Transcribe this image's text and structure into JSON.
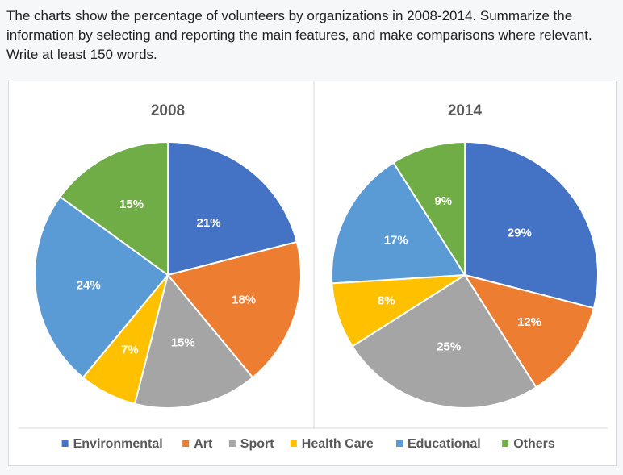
{
  "prompt": {
    "text": "The charts show the percentage of volunteers by organizations in 2008-2014. Summarize the information by selecting and reporting the main features, and make comparisons where relevant. Write at least 150 words."
  },
  "colors": {
    "Environmental": "#4472c4",
    "Art": "#ed7d31",
    "Sport": "#a5a5a5",
    "Health Care": "#ffc000",
    "Educational": "#5b9bd5",
    "Others": "#70ad47"
  },
  "chart_data": [
    {
      "type": "pie",
      "title": "2008",
      "categories": [
        "Environmental",
        "Art",
        "Sport",
        "Health Care",
        "Educational",
        "Others"
      ],
      "values": [
        21,
        18,
        15,
        7,
        24,
        15
      ],
      "labels": [
        "21%",
        "18%",
        "15%",
        "7%",
        "24%",
        "15%"
      ]
    },
    {
      "type": "pie",
      "title": "2014",
      "categories": [
        "Environmental",
        "Art",
        "Sport",
        "Health Care",
        "Educational",
        "Others"
      ],
      "values": [
        29,
        12,
        25,
        8,
        17,
        9
      ],
      "labels": [
        "29%",
        "12%",
        "25%",
        "8%",
        "17%",
        "9%"
      ]
    }
  ],
  "legend": {
    "placement": "bottom",
    "items": [
      "Environmental",
      "Art",
      "Sport",
      "Health Care",
      "Educational",
      "Others"
    ]
  }
}
